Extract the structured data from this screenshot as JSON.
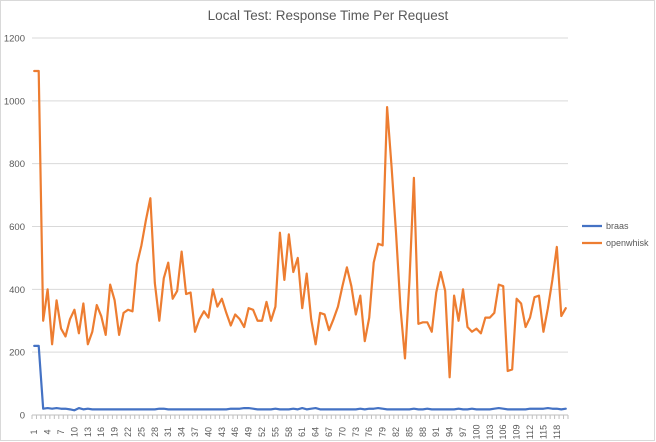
{
  "chart_data": {
    "type": "line",
    "title": "Local Test: Response Time Per Request",
    "xlabel": "",
    "ylabel": "",
    "ylim": [
      0,
      1200
    ],
    "yticks": [
      0,
      200,
      400,
      600,
      800,
      1000,
      1200
    ],
    "x": [
      1,
      2,
      3,
      4,
      5,
      6,
      7,
      8,
      9,
      10,
      11,
      12,
      13,
      14,
      15,
      16,
      17,
      18,
      19,
      20,
      21,
      22,
      23,
      24,
      25,
      26,
      27,
      28,
      29,
      30,
      31,
      32,
      33,
      34,
      35,
      36,
      37,
      38,
      39,
      40,
      41,
      42,
      43,
      44,
      45,
      46,
      47,
      48,
      49,
      50,
      51,
      52,
      53,
      54,
      55,
      56,
      57,
      58,
      59,
      60,
      61,
      62,
      63,
      64,
      65,
      66,
      67,
      68,
      69,
      70,
      71,
      72,
      73,
      74,
      75,
      76,
      77,
      78,
      79,
      80,
      81,
      82,
      83,
      84,
      85,
      86,
      87,
      88,
      89,
      90,
      91,
      92,
      93,
      94,
      95,
      96,
      97,
      98,
      99,
      100,
      101,
      102,
      103,
      104,
      105,
      106,
      107,
      108,
      109,
      110,
      111,
      112,
      113,
      114,
      115,
      116,
      117,
      118,
      119,
      120
    ],
    "xtick_labels": [
      "1",
      "4",
      "7",
      "10",
      "13",
      "16",
      "19",
      "22",
      "25",
      "28",
      "31",
      "34",
      "37",
      "40",
      "43",
      "46",
      "49",
      "52",
      "55",
      "58",
      "61",
      "64",
      "67",
      "70",
      "73",
      "76",
      "79",
      "82",
      "85",
      "88",
      "91",
      "94",
      "97",
      "100",
      "103",
      "106",
      "109",
      "112",
      "115",
      "118"
    ],
    "grid": true,
    "legend_position": "right",
    "series": [
      {
        "name": "braas",
        "color": "#4472C4",
        "values": [
          220,
          220,
          20,
          22,
          20,
          22,
          20,
          20,
          18,
          15,
          22,
          18,
          20,
          18,
          18,
          18,
          18,
          18,
          18,
          18,
          18,
          18,
          18,
          18,
          18,
          18,
          18,
          18,
          20,
          20,
          18,
          18,
          18,
          18,
          18,
          18,
          18,
          18,
          18,
          18,
          18,
          18,
          18,
          18,
          20,
          20,
          20,
          22,
          22,
          20,
          18,
          18,
          18,
          18,
          20,
          18,
          18,
          18,
          20,
          18,
          22,
          18,
          20,
          22,
          18,
          18,
          18,
          18,
          18,
          18,
          18,
          18,
          18,
          20,
          18,
          20,
          20,
          22,
          20,
          18,
          18,
          18,
          18,
          18,
          18,
          20,
          18,
          18,
          20,
          18,
          18,
          18,
          18,
          18,
          18,
          20,
          18,
          18,
          20,
          18,
          18,
          18,
          18,
          20,
          22,
          20,
          18,
          18,
          18,
          18,
          18,
          20,
          20,
          20,
          20,
          22,
          20,
          20,
          18,
          20
        ]
      },
      {
        "name": "openwhisk",
        "color": "#ED7D31",
        "values": [
          1095,
          1095,
          300,
          400,
          225,
          365,
          275,
          250,
          305,
          335,
          260,
          355,
          225,
          265,
          350,
          315,
          255,
          415,
          365,
          255,
          325,
          335,
          330,
          480,
          540,
          620,
          690,
          420,
          300,
          435,
          485,
          370,
          395,
          520,
          385,
          390,
          265,
          305,
          330,
          310,
          400,
          345,
          370,
          325,
          285,
          320,
          305,
          280,
          340,
          335,
          300,
          300,
          360,
          300,
          345,
          580,
          430,
          575,
          455,
          500,
          340,
          450,
          305,
          225,
          325,
          320,
          270,
          305,
          345,
          410,
          470,
          410,
          320,
          380,
          235,
          310,
          485,
          545,
          540,
          980,
          790,
          580,
          340,
          180,
          425,
          755,
          290,
          295,
          295,
          265,
          390,
          455,
          395,
          120,
          380,
          300,
          400,
          280,
          265,
          275,
          260,
          310,
          310,
          325,
          415,
          410,
          140,
          145,
          370,
          355,
          280,
          310,
          375,
          380,
          265,
          340,
          430,
          535,
          315,
          340
        ]
      }
    ]
  }
}
